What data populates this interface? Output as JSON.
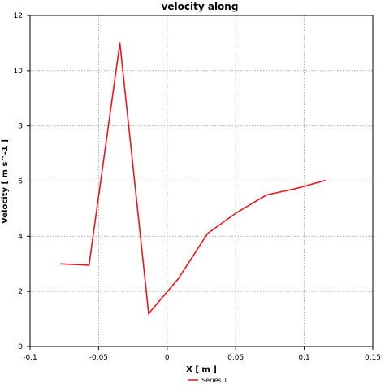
{
  "chart_data": {
    "type": "line",
    "title": "velocity along",
    "xlabel": "X [ m ]",
    "ylabel": "Velocity [ m s^-1 ]",
    "xlim": [
      -0.1,
      0.15
    ],
    "ylim": [
      0,
      12
    ],
    "x_ticks": [
      -0.1,
      -0.05,
      0,
      0.05,
      0.1,
      0.15
    ],
    "x_tick_labels": [
      "-0.1",
      "-0.05",
      "0",
      "0.05",
      "0.1",
      "0.15"
    ],
    "y_ticks": [
      0,
      2,
      4,
      6,
      8,
      10,
      12
    ],
    "y_tick_labels": [
      "0",
      "2",
      "4",
      "6",
      "8",
      "10",
      "12"
    ],
    "grid": true,
    "legend_position": "bottom-center",
    "series": [
      {
        "name": "Series 1",
        "color": "#e8161f",
        "x": [
          -0.0775,
          -0.057,
          -0.0345,
          -0.0135,
          0.008,
          0.0295,
          0.0505,
          0.0725,
          0.094,
          0.115
        ],
        "y": [
          3.0,
          2.95,
          11.0,
          1.2,
          2.45,
          4.1,
          4.85,
          5.5,
          5.73,
          6.02
        ]
      }
    ]
  }
}
